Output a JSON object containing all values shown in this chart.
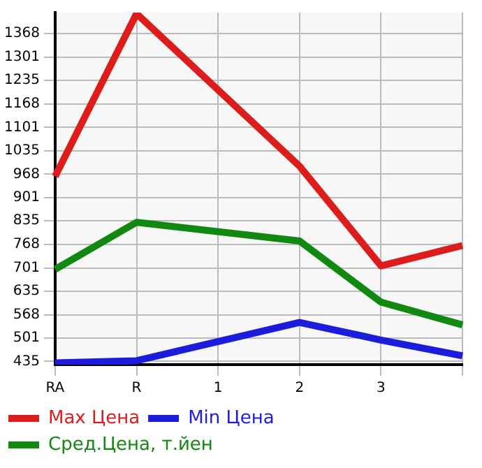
{
  "chart_data": {
    "type": "line",
    "categories": [
      "RA",
      "R",
      "1",
      "2",
      "3",
      null
    ],
    "series": [
      {
        "name": "Max Цена",
        "color": "#dd1c1c",
        "values": [
          962,
          1425,
          null,
          991,
          707,
          765
        ]
      },
      {
        "name": "Min Цена",
        "color": "#1c1cdd",
        "values": [
          431,
          437,
          null,
          546,
          496,
          451
        ]
      },
      {
        "name": "Сред.Цена, т.йен",
        "color": "#11880f",
        "values": [
          697,
          831,
          null,
          778,
          604,
          539
        ]
      }
    ],
    "ylim": [
      426,
      1428
    ],
    "yticks": [
      435,
      501,
      568,
      635,
      701,
      768,
      835,
      901,
      968,
      1035,
      1101,
      1168,
      1235,
      1301,
      1368
    ],
    "grid": true,
    "legend": "bottom",
    "marker": "none",
    "line_style": "solid"
  }
}
